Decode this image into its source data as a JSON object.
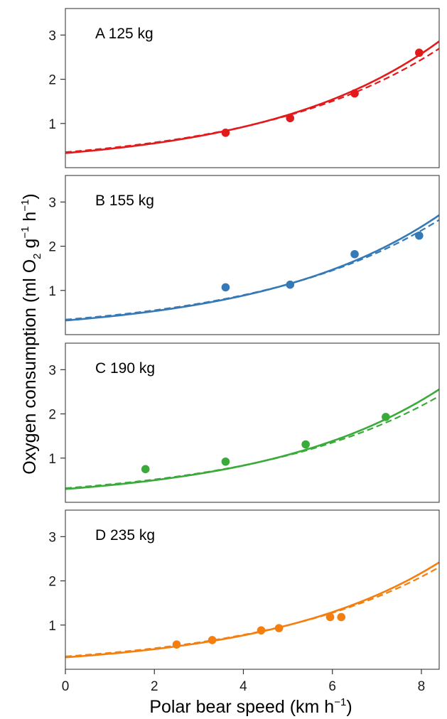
{
  "chart_data": {
    "type": "scatter",
    "xlabel": {
      "main": "Polar bear speed",
      "unit_open": "(km h",
      "unit_sup": "−1",
      "unit_close": ")"
    },
    "ylabel": {
      "main": "Oxygen consumption",
      "p1": "(ml O",
      "sub": "2",
      "p2": " g",
      "sup1": "−1",
      "p3": " h",
      "sup2": "−1",
      "p4": ")"
    },
    "xlim": [
      0,
      8.4
    ],
    "ylim": [
      0,
      3.6
    ],
    "x_ticks": [
      "0",
      "2",
      "4",
      "6",
      "8"
    ],
    "y_ticks": [
      "1",
      "2",
      "3"
    ],
    "grid": false,
    "panels": [
      {
        "label": "A 125 kg",
        "color": "#e31a1c",
        "points": [
          [
            3.6,
            0.79
          ],
          [
            5.05,
            1.12
          ],
          [
            6.5,
            1.68
          ],
          [
            7.95,
            2.6
          ]
        ],
        "fit_solid": {
          "a": 0.33,
          "b": 0.257
        },
        "fit_dashed": {
          "a": 0.35,
          "b": 0.243
        }
      },
      {
        "label": "B 155 kg",
        "color": "#3579b6",
        "points": [
          [
            3.6,
            1.07
          ],
          [
            5.05,
            1.13
          ],
          [
            6.5,
            1.82
          ],
          [
            7.95,
            2.24
          ]
        ],
        "fit_solid": {
          "a": 0.32,
          "b": 0.254
        },
        "fit_dashed": {
          "a": 0.34,
          "b": 0.242
        }
      },
      {
        "label": "C 190 kg",
        "color": "#3aaa3a",
        "points": [
          [
            1.8,
            0.75
          ],
          [
            3.6,
            0.92
          ],
          [
            5.4,
            1.31
          ],
          [
            7.2,
            1.93
          ]
        ],
        "fit_solid": {
          "a": 0.3,
          "b": 0.255
        },
        "fit_dashed": {
          "a": 0.32,
          "b": 0.24
        }
      },
      {
        "label": "D 235 kg",
        "color": "#f47f0f",
        "points": [
          [
            2.5,
            0.56
          ],
          [
            3.3,
            0.66
          ],
          [
            4.4,
            0.88
          ],
          [
            4.8,
            0.93
          ],
          [
            5.95,
            1.18
          ],
          [
            6.2,
            1.18
          ]
        ],
        "fit_solid": {
          "a": 0.27,
          "b": 0.261
        },
        "fit_dashed": {
          "a": 0.29,
          "b": 0.247
        }
      }
    ]
  }
}
